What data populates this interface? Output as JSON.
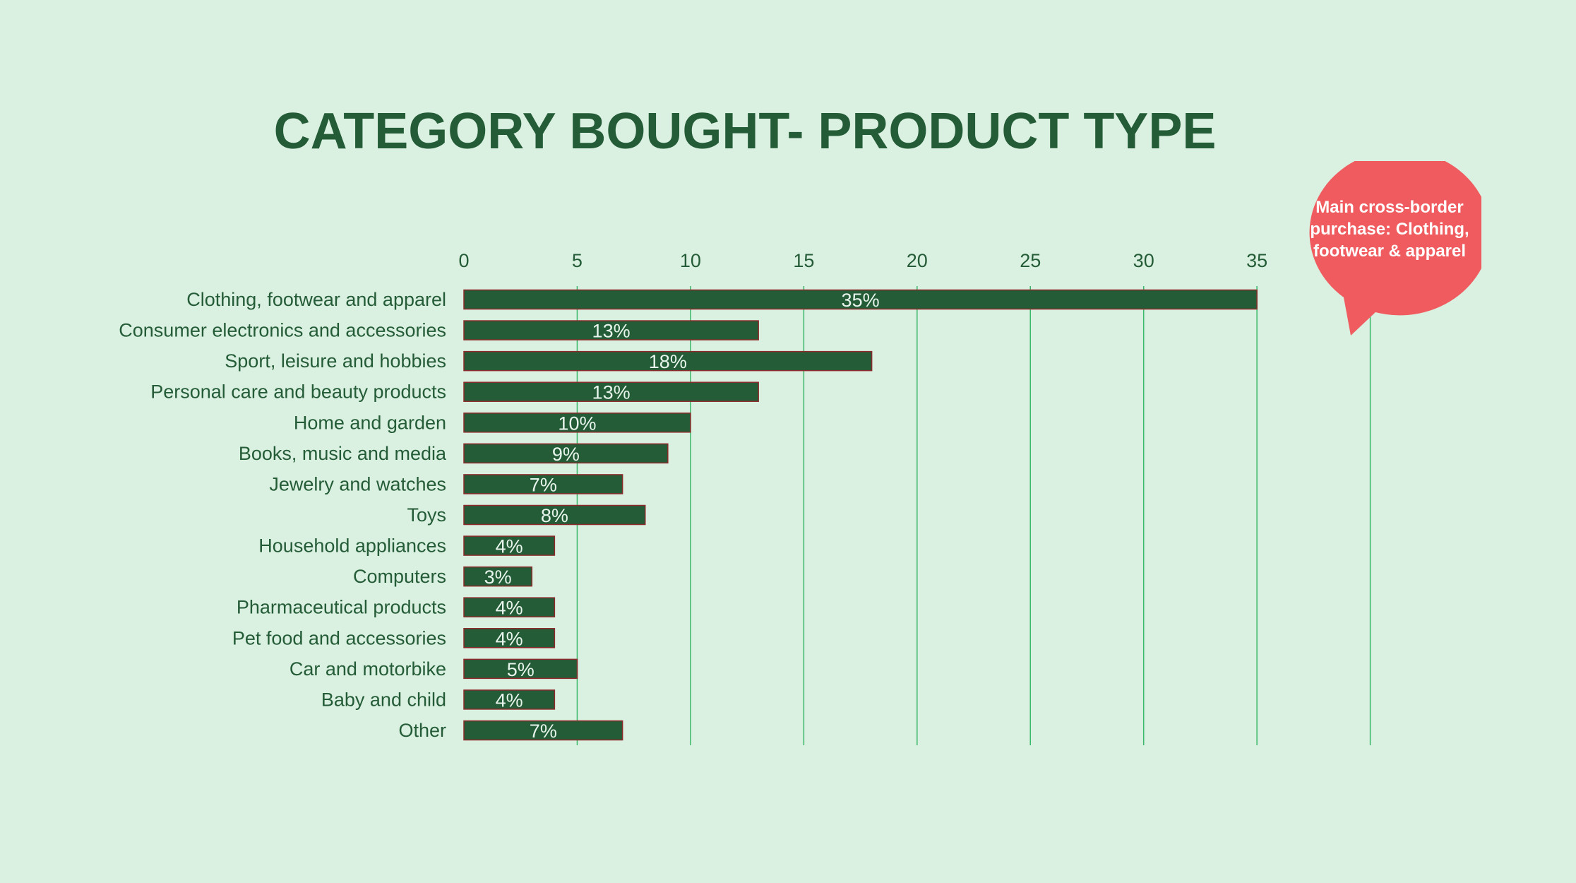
{
  "callout": {
    "text": "Main cross-border purchase: Clothing, footwear & apparel",
    "color": "#ef5b5f"
  },
  "colors": {
    "background": "#daf0e1",
    "bar": "#245c37",
    "bar_border": "#8b2a2a",
    "gridline": "#3cb86a",
    "text": "#245c37",
    "data_label": "#e8f5ec"
  },
  "chart_data": {
    "type": "bar",
    "orientation": "horizontal",
    "title": "CATEGORY BOUGHT- PRODUCT TYPE",
    "xlabel": "",
    "ylabel": "",
    "xlim": [
      0,
      40
    ],
    "x_ticks": [
      0,
      5,
      10,
      15,
      20,
      25,
      30,
      35
    ],
    "x_tick_labels": [
      "0",
      "5",
      "10",
      "15",
      "20",
      "25",
      "30",
      "35"
    ],
    "axis_position": "top",
    "grid": true,
    "legend": "none",
    "categories": [
      "Clothing, footwear and apparel",
      "Consumer electronics and accessories",
      "Sport, leisure and hobbies",
      "Personal care and beauty products",
      "Home and garden",
      "Books, music and media",
      "Jewelry and watches",
      "Toys",
      "Household appliances",
      "Computers",
      "Pharmaceutical products",
      "Pet food and accessories",
      "Car and motorbike",
      "Baby and child",
      "Other"
    ],
    "values": [
      35,
      13,
      18,
      13,
      10,
      9,
      7,
      8,
      4,
      3,
      4,
      4,
      5,
      4,
      7
    ],
    "data_labels": [
      "35%",
      "13%",
      "18%",
      "13%",
      "10%",
      "9%",
      "7%",
      "8%",
      "4%",
      "3%",
      "4%",
      "4%",
      "5%",
      "4%",
      "7%"
    ]
  }
}
